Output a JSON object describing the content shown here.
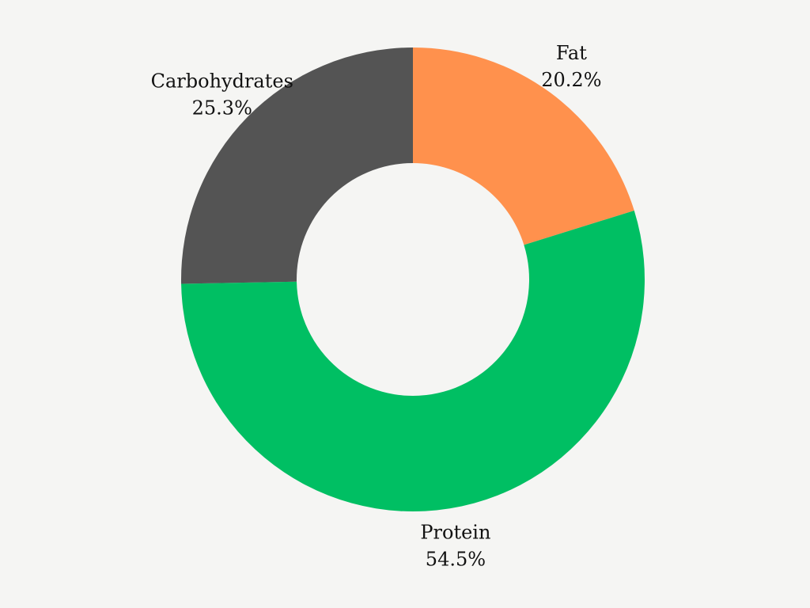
{
  "chart_data": {
    "type": "pie",
    "donut": true,
    "start_angle_deg": 0,
    "direction": "clockwise",
    "slices": [
      {
        "label": "Fat",
        "value": 20.2,
        "value_label": "20.2%",
        "color": "#ff914d"
      },
      {
        "label": "Protein",
        "value": 54.5,
        "value_label": "54.5%",
        "color": "#00bf63"
      },
      {
        "label": "Carbohydrates",
        "value": 25.3,
        "value_label": "25.3%",
        "color": "#545454"
      }
    ],
    "background": "#f5f5f3"
  }
}
